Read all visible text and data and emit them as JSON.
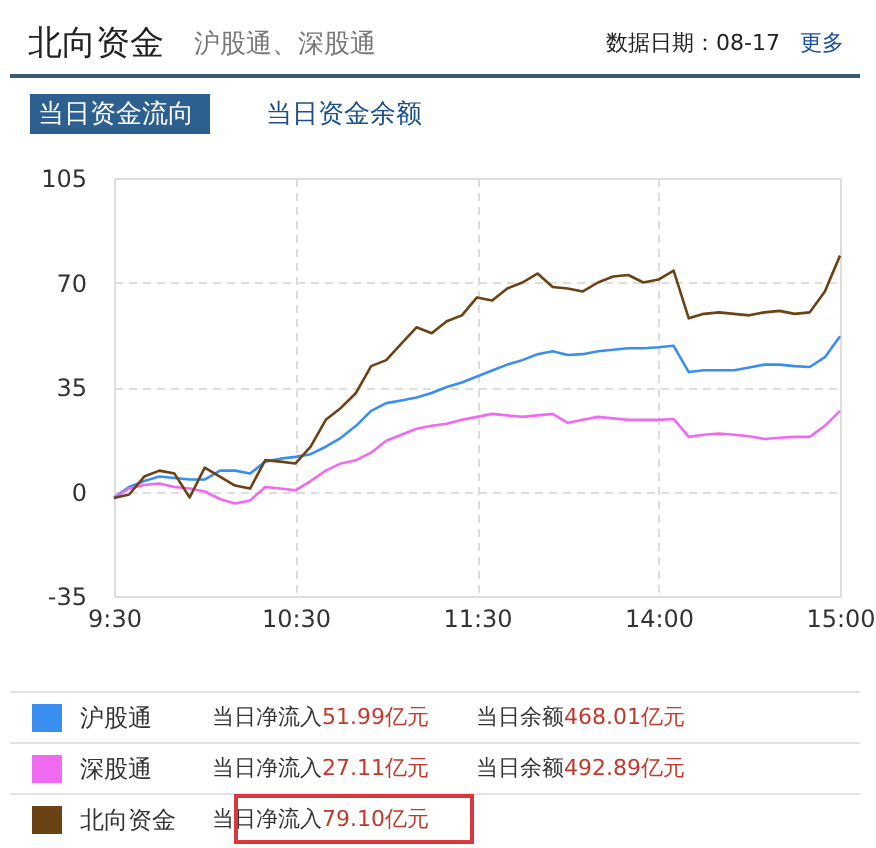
{
  "chart_data": {
    "type": "line",
    "title": "北向资金",
    "subtitle": "沪股通、深股通",
    "annotations": [
      "数据日期：08-17",
      "更多",
      "当日资金流向",
      "当日资金余额",
      "当日净流入51.99亿元",
      "当日余额468.01亿元",
      "当日净流入27.11亿元",
      "当日余额492.89亿元",
      "当日净流入79.10亿元"
    ],
    "categories": [
      "9:30",
      null,
      null,
      null,
      null,
      null,
      null,
      null,
      null,
      null,
      null,
      null,
      "10:30",
      null,
      null,
      null,
      null,
      null,
      null,
      null,
      null,
      null,
      null,
      null,
      "11:30",
      null,
      null,
      null,
      null,
      null,
      null,
      null,
      null,
      null,
      null,
      null,
      "14:00",
      null,
      null,
      null,
      null,
      null,
      null,
      null,
      null,
      null,
      null,
      null,
      "15:00"
    ],
    "ylim": [
      -35,
      105
    ],
    "yticks": [
      -35,
      0,
      35,
      70,
      105
    ],
    "grid": true,
    "legend": "bottom",
    "line_style": "solid",
    "marker": "none",
    "series": [
      {
        "name": "沪股通",
        "color": "#3a8ef0",
        "values": [
          -2,
          1.5,
          3.5,
          5,
          4.5,
          4,
          4,
          7,
          7,
          6,
          10,
          11,
          11.6,
          12.5,
          15,
          18,
          22,
          27,
          29.6,
          30.5,
          31.5,
          33,
          35,
          36.5,
          38.5,
          40.5,
          42.5,
          44,
          46,
          47,
          45.7,
          46,
          47,
          47.5,
          48,
          48,
          48.3,
          48.8,
          40,
          40.6,
          40.6,
          40.6,
          41.5,
          42.5,
          42.5,
          42,
          41.7,
          45,
          52
        ]
      },
      {
        "name": "深股通",
        "color": "#f06af0",
        "values": [
          -2.2,
          1,
          2.2,
          2.7,
          1.5,
          1,
          0,
          -2.5,
          -4,
          -3,
          1.5,
          1,
          0.4,
          3.5,
          7,
          9.4,
          10.5,
          13,
          17,
          19,
          21,
          22,
          22.7,
          24,
          25,
          26,
          25.5,
          25,
          25.5,
          26,
          23,
          24,
          25,
          24.5,
          24,
          24,
          24,
          24.3,
          18.3,
          19,
          19.4,
          19,
          18.5,
          17.6,
          18,
          18.3,
          18.3,
          22,
          27
        ]
      },
      {
        "name": "北向资金",
        "color": "#6b4214",
        "values": [
          -2.2,
          -1,
          5,
          7,
          6,
          -2,
          8,
          5,
          2,
          1,
          10.5,
          10,
          9.4,
          15,
          24,
          28,
          33,
          42,
          44,
          49.5,
          55,
          53,
          57,
          59,
          65,
          64,
          68,
          70,
          73,
          68.5,
          68,
          67,
          70,
          72,
          72.5,
          70,
          71,
          74,
          58,
          59.5,
          60,
          59.5,
          59,
          60,
          60.5,
          59.5,
          60,
          67,
          79
        ]
      }
    ]
  }
}
